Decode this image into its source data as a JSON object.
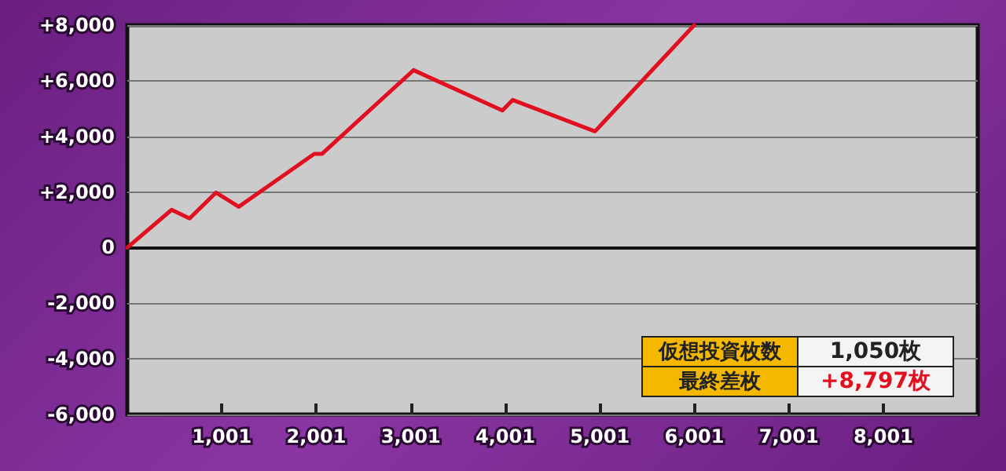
{
  "chart_data": {
    "type": "line",
    "x": [
      1,
      470,
      660,
      940,
      1180,
      1980,
      2060,
      3030,
      3970,
      4080,
      4950,
      6000
    ],
    "series": [
      {
        "color": "#e01020",
        "values": [
          0,
          1360,
          1050,
          1980,
          1470,
          3370,
          3370,
          6380,
          4930,
          5310,
          4180,
          8000
        ]
      }
    ],
    "xlim": [
      1,
      9000
    ],
    "xticks": [
      {
        "value": 1001,
        "label": "1,001"
      },
      {
        "value": 2001,
        "label": "2,001"
      },
      {
        "value": 3001,
        "label": "3,001"
      },
      {
        "value": 4001,
        "label": "4,001"
      },
      {
        "value": 5001,
        "label": "5,001"
      },
      {
        "value": 6001,
        "label": "6,001"
      },
      {
        "value": 7001,
        "label": "7,001"
      },
      {
        "value": 8001,
        "label": "8,001"
      }
    ],
    "ylim": [
      -6000,
      8000
    ],
    "yticks": [
      {
        "value": -6000,
        "label": "-6,000"
      },
      {
        "value": -4000,
        "label": "-4,000"
      },
      {
        "value": -2000,
        "label": "-2,000"
      },
      {
        "value": 0,
        "label": "0"
      },
      {
        "value": 2000,
        "label": "+2,000"
      },
      {
        "value": 4000,
        "label": "+4,000"
      },
      {
        "value": 6000,
        "label": "+6,000"
      },
      {
        "value": 8000,
        "label": "+8,000"
      }
    ],
    "grid": "y",
    "marker": "none",
    "line_style": "solid",
    "annotations": [
      "仮想投資枚数",
      "1,050枚",
      "最終差枚",
      "+8,797枚"
    ]
  }
}
